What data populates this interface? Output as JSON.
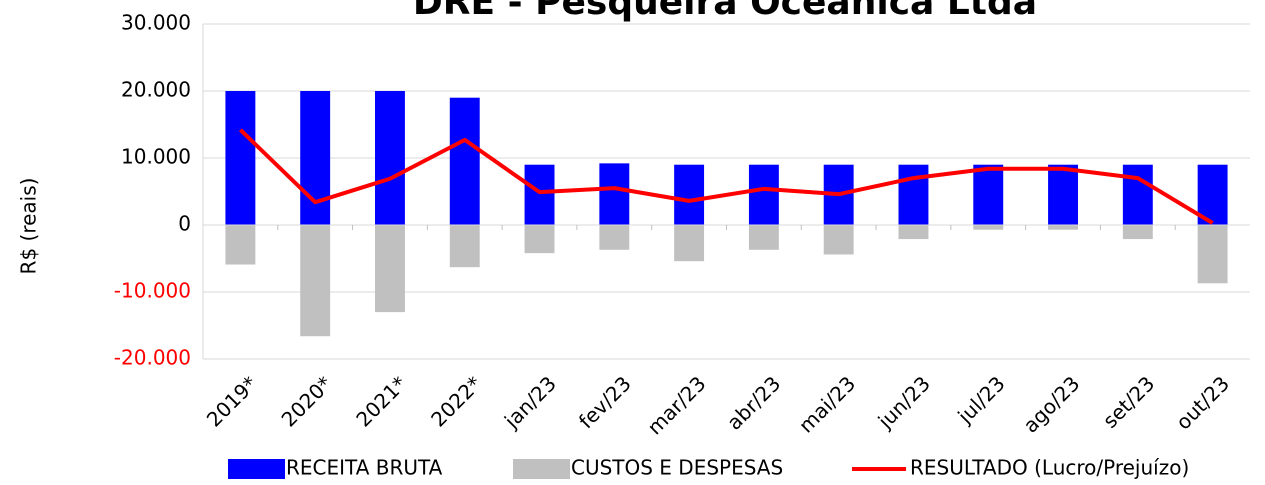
{
  "chart_data": {
    "type": "bar_line",
    "title": "DRE - Pesqueira Oceânica Ltda",
    "ylabel": "R$ (reais)",
    "categories": [
      "2019*",
      "2020*",
      "2021*",
      "2022*",
      "jan/23",
      "fev/23",
      "mar/23",
      "abr/23",
      "mai/23",
      "jun/23",
      "jul/23",
      "ago/23",
      "set/23",
      "out/23"
    ],
    "series": [
      {
        "name": "RECEITA BRUTA",
        "type": "bar",
        "color": "#0000ff",
        "values": [
          20000,
          20000,
          20000,
          19000,
          9000,
          9200,
          9000,
          9000,
          9000,
          9000,
          9000,
          9000,
          9000,
          9000
        ]
      },
      {
        "name": "CUSTOS E DESPESAS",
        "type": "bar",
        "color": "#c0c0c0",
        "values": [
          -5900,
          -16600,
          -13000,
          -6300,
          -4200,
          -3700,
          -5400,
          -3700,
          -4400,
          -2100,
          -700,
          -700,
          -2100,
          -8700
        ]
      },
      {
        "name": "RESULTADO (Lucro/Prejuízo)",
        "type": "line",
        "color": "#ff0000",
        "values": [
          14200,
          3400,
          6900,
          12700,
          4900,
          5500,
          3600,
          5400,
          4600,
          7000,
          8400,
          8400,
          7000,
          300
        ]
      }
    ],
    "ylim": [
      -20000,
      30000
    ],
    "yticks": [
      {
        "value": -20000,
        "label": "-20.000"
      },
      {
        "value": -10000,
        "label": "-10.000"
      },
      0,
      {
        "value": 10000,
        "label": "10.000"
      },
      {
        "value": 20000,
        "label": "20.000"
      },
      {
        "value": 30000,
        "label": "30.000"
      }
    ],
    "negative_tick_color": "#ff0000",
    "grid": true,
    "legend": "bottom"
  }
}
